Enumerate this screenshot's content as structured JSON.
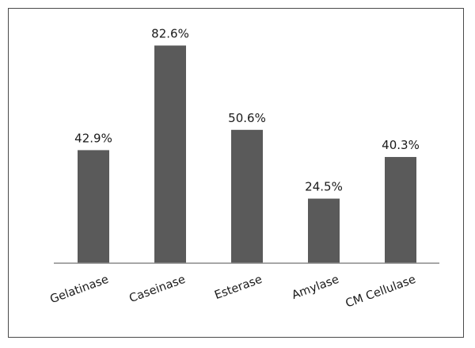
{
  "colors": {
    "bar": "#5a5a5a",
    "axis": "#8a8a8a",
    "frame": "#4a4a4a"
  },
  "chart_data": {
    "type": "bar",
    "categories": [
      "Gelatinase",
      "Caseinase",
      "Esterase",
      "Amylase",
      "CM Cellulase"
    ],
    "values": [
      42.9,
      82.6,
      50.6,
      24.5,
      40.3
    ],
    "data_labels": [
      "42.9%",
      "82.6%",
      "50.6%",
      "24.5%",
      "40.3%"
    ],
    "title": "",
    "xlabel": "",
    "ylabel": "",
    "ylim": [
      0,
      100
    ],
    "grid": false,
    "legend": "none",
    "tick_label_rotation": "diagonal"
  }
}
